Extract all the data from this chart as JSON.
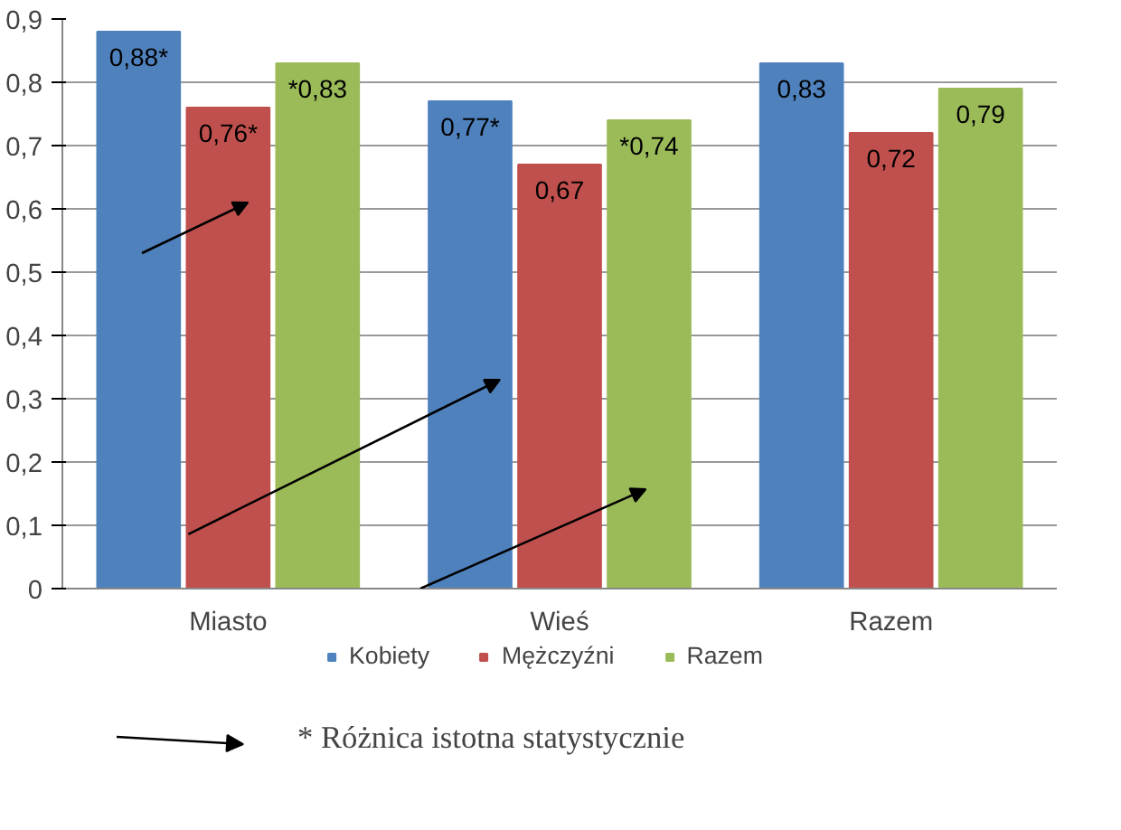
{
  "chart_data": {
    "type": "bar",
    "categories": [
      "Miasto",
      "Wieś",
      "Razem"
    ],
    "series": [
      {
        "name": "Kobiety",
        "color": "#4f81bd",
        "values": [
          0.88,
          0.77,
          0.83
        ],
        "value_labels": [
          "0,88*",
          "0,77*",
          "0,83"
        ]
      },
      {
        "name": "Mężczyźni",
        "color": "#c0504d",
        "values": [
          0.76,
          0.67,
          0.72
        ],
        "value_labels": [
          "0,76*",
          "0,67",
          "0,72"
        ]
      },
      {
        "name": "Razem",
        "color": "#9bbb59",
        "values": [
          0.83,
          0.74,
          0.79
        ],
        "value_labels": [
          "*0,83",
          "*0,74",
          "0,79"
        ]
      }
    ],
    "ylim": [
      0,
      0.9
    ],
    "yticks": [
      {
        "value": 0,
        "label": "0"
      },
      {
        "value": 0.1,
        "label": "0,1"
      },
      {
        "value": 0.2,
        "label": "0,2"
      },
      {
        "value": 0.3,
        "label": "0,3"
      },
      {
        "value": 0.4,
        "label": "0,4"
      },
      {
        "value": 0.5,
        "label": "0,5"
      },
      {
        "value": 0.6,
        "label": "0,6"
      },
      {
        "value": 0.7,
        "label": "0,7"
      },
      {
        "value": 0.8,
        "label": "0,8"
      },
      {
        "value": 0.9,
        "label": "0,9"
      }
    ],
    "grid": "y",
    "legend": "bottom",
    "annotations": [
      "* Różnica istotna statystycznie"
    ]
  }
}
